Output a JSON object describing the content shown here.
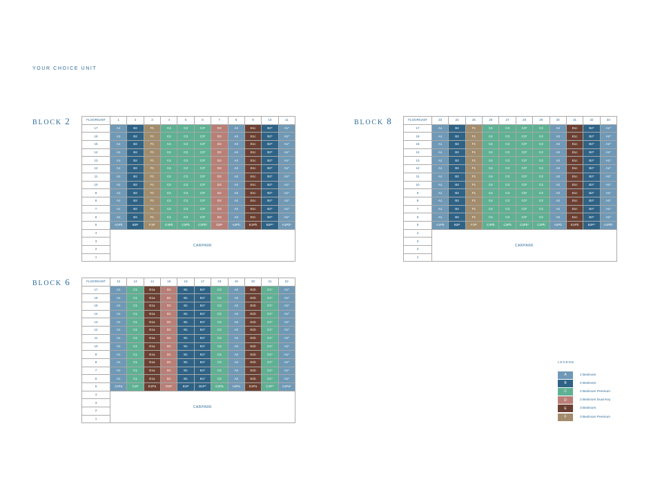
{
  "page_label": "YOUR CHOICE UNIT",
  "header_label": "FLOOR/UNIT",
  "carpark_label": "CARPARK",
  "floors": [
    "17",
    "16",
    "15",
    "14",
    "13",
    "12",
    "11",
    "10",
    "9",
    "8",
    "7",
    "6",
    "5",
    "4",
    "3",
    "2",
    "1"
  ],
  "blocks": [
    {
      "id": "block2",
      "title_word": "BLOCK",
      "title_num": "2",
      "units": [
        "1",
        "2",
        "3",
        "4",
        "5",
        "6",
        "7",
        "8",
        "9",
        "10",
        "11"
      ],
      "typical": [
        "A1",
        "B2",
        "F1",
        "C4",
        "C3",
        "C3*",
        "D2",
        "A2",
        "E1c",
        "B2*",
        "A1*"
      ],
      "fifth": [
        "A1Pb",
        "B2P",
        "F1P",
        "C4Pb",
        "C3Pb",
        "C3Pb*",
        "D2P",
        "A2Pb",
        "E1Pb",
        "B2P*",
        "A1Pb*"
      ],
      "classes": [
        "A",
        "B",
        "F",
        "C",
        "C",
        "C",
        "D",
        "A",
        "E",
        "B",
        "A"
      ]
    },
    {
      "id": "block8",
      "title_word": "BLOCK",
      "title_num": "8",
      "units": [
        "23",
        "24",
        "25",
        "26",
        "27",
        "28",
        "29",
        "30",
        "31",
        "32",
        "33"
      ],
      "typical": [
        "A1",
        "B2",
        "F1",
        "C4",
        "C3",
        "C3*",
        "C2",
        "A2",
        "E1c",
        "B2*",
        "A1*"
      ],
      "fifth": [
        "A1Pb",
        "B2P",
        "F1P",
        "C4Pb",
        "C3Pb",
        "C3Pb*",
        "C2Pb",
        "A2Pb",
        "E1Pb",
        "B2P*",
        "A1Pb*"
      ],
      "classes": [
        "A",
        "B",
        "F",
        "C",
        "C",
        "C",
        "C",
        "A",
        "E",
        "B",
        "A"
      ]
    },
    {
      "id": "block6",
      "title_word": "BLOCK",
      "title_num": "6",
      "units": [
        "12",
        "13",
        "14",
        "15",
        "16",
        "17",
        "18",
        "19",
        "20",
        "21",
        "22"
      ],
      "typical": [
        "A1",
        "C1",
        "E1a",
        "D1",
        "B1",
        "B1*",
        "C2",
        "A2",
        "E1b",
        "C1*",
        "A1*"
      ],
      "fifth": [
        "A1Pa",
        "C1P",
        "E1Pa",
        "D1P",
        "B1P",
        "B1P*",
        "C2Pa",
        "A2Pa",
        "E1Pa",
        "C1P*",
        "A1Pa*"
      ],
      "classes": [
        "A",
        "C",
        "E",
        "D",
        "B",
        "B",
        "C",
        "A",
        "E",
        "C",
        "A"
      ]
    }
  ],
  "legend": {
    "title": "LEGEND",
    "items": [
      {
        "code": "A",
        "label": "1 Bedroom",
        "color": "#6f99b6"
      },
      {
        "code": "B",
        "label": "2 Bedroom",
        "color": "#2e6386"
      },
      {
        "code": "C",
        "label": "2 Bedroom Premium",
        "color": "#5fb194"
      },
      {
        "code": "D",
        "label": "2 Bedroom Dual Key",
        "color": "#b97f76"
      },
      {
        "code": "E",
        "label": "3 Bedroom",
        "color": "#6b4032"
      },
      {
        "code": "F",
        "label": "3 Bedroom Premium",
        "color": "#a28c6c"
      }
    ]
  }
}
